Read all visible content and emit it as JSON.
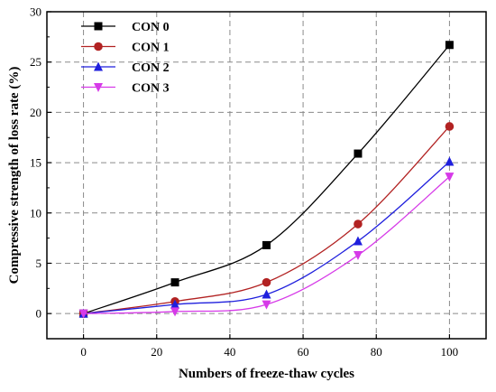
{
  "chart_data": {
    "type": "line",
    "xlabel": "Numbers of freeze-thaw cycles",
    "ylabel": "Compressive strength of loss rate  (%)",
    "xlim": [
      -10,
      110
    ],
    "ylim": [
      -2.5,
      30
    ],
    "xticks": [
      0,
      20,
      40,
      60,
      80,
      100
    ],
    "yticks": [
      0,
      5,
      10,
      15,
      20,
      25,
      30
    ],
    "grid": true,
    "legend_position": "top-left",
    "x": [
      0,
      25,
      50,
      75,
      100
    ],
    "series": [
      {
        "name": "CON 0",
        "color": "#000000",
        "marker": "square",
        "values": [
          0,
          3.1,
          6.8,
          15.9,
          26.7
        ]
      },
      {
        "name": "CON 1",
        "color": "#b22222",
        "marker": "circle",
        "values": [
          0,
          1.2,
          3.1,
          8.9,
          18.6
        ]
      },
      {
        "name": "CON 2",
        "color": "#1f1fdd",
        "marker": "triangle-up",
        "values": [
          0,
          0.9,
          1.9,
          7.2,
          15.1
        ]
      },
      {
        "name": "CON 3",
        "color": "#d63ae8",
        "marker": "triangle-down",
        "values": [
          0,
          0.2,
          0.9,
          5.8,
          13.6
        ]
      }
    ]
  }
}
